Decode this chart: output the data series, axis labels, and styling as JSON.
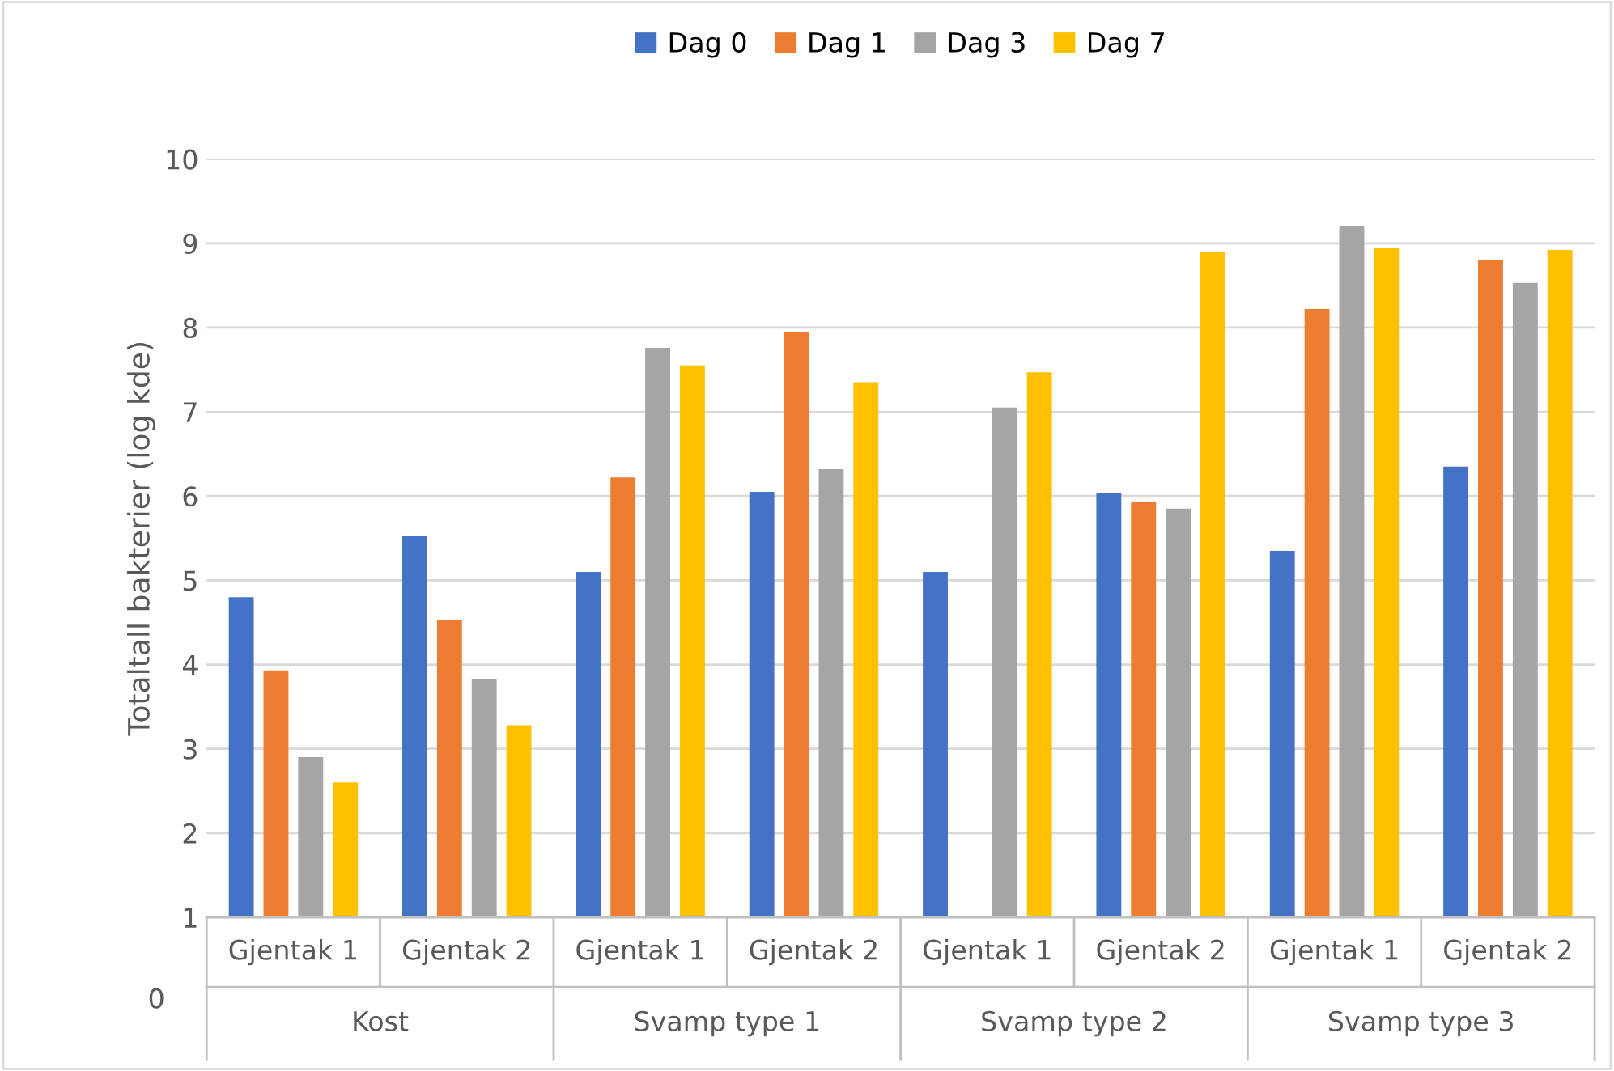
{
  "chart_data": {
    "type": "bar",
    "ylabel": "Totaltall bakterier (log kde)",
    "categories": [
      "Gjentak 1",
      "Gjentak 2",
      "Gjentak 1",
      "Gjentak 2",
      "Gjentak 1",
      "Gjentak 2",
      "Gjentak 1",
      "Gjentak 2"
    ],
    "annotations": [
      "0",
      "Kost",
      "Svamp type 1",
      "Svamp type 2",
      "Svamp type 3"
    ],
    "series": [
      {
        "name": "Dag 0",
        "color": "#4472c4",
        "values": [
          4.8,
          5.53,
          5.1,
          6.05,
          5.1,
          6.03,
          5.35,
          6.35
        ]
      },
      {
        "name": "Dag 1",
        "color": "#ed7d31",
        "values": [
          3.93,
          4.53,
          6.22,
          7.95,
          null,
          5.93,
          8.22,
          8.8
        ]
      },
      {
        "name": "Dag 3",
        "color": "#a5a5a5",
        "values": [
          2.9,
          3.83,
          7.76,
          6.32,
          7.05,
          5.85,
          9.2,
          8.53
        ]
      },
      {
        "name": "Dag 7",
        "color": "#ffc000",
        "values": [
          2.6,
          3.28,
          7.55,
          7.35,
          7.47,
          8.9,
          8.95,
          8.92
        ]
      }
    ],
    "ylim": [
      1,
      10
    ],
    "yticks": [
      1,
      2,
      3,
      4,
      5,
      6,
      7,
      8,
      9,
      10
    ],
    "grid": "y",
    "legend": "top"
  }
}
